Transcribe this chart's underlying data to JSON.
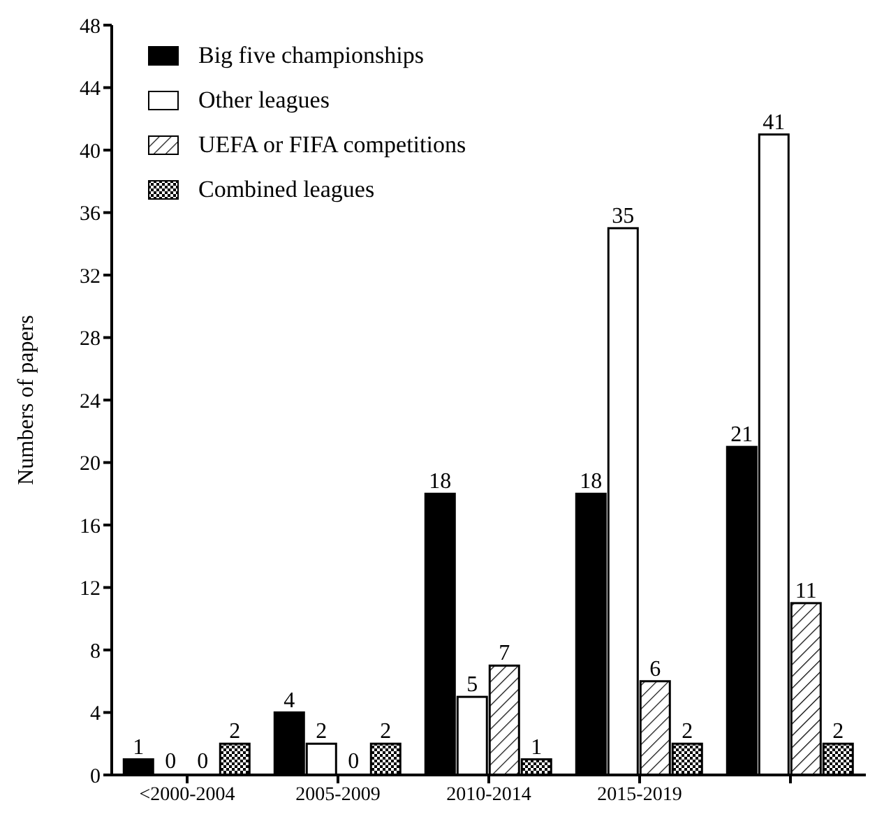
{
  "chart_data": {
    "type": "bar",
    "ylabel": "Numbers of papers",
    "categories": [
      "<2000-2004",
      "2005-2009",
      "2010-2014",
      "2015-2019",
      null
    ],
    "series": [
      {
        "name": "Big five championships",
        "color": "#000000",
        "values": [
          1,
          4,
          18,
          18,
          21
        ]
      },
      {
        "name": "Other leagues",
        "color": "#ffffff",
        "values": [
          0,
          2,
          5,
          35,
          41
        ]
      },
      {
        "name": "UEFA or FIFA competitions",
        "color": "#000000",
        "values": [
          0,
          0,
          7,
          6,
          11
        ]
      },
      {
        "name": "Combined leagues",
        "color": "#000000",
        "values": [
          2,
          2,
          1,
          2,
          2
        ]
      }
    ],
    "ylim": [
      0,
      48
    ],
    "yticks": [
      0,
      4,
      8,
      12,
      16,
      20,
      24,
      28,
      32,
      36,
      40,
      44,
      48
    ],
    "grid": false,
    "legend": "top left",
    "data_labels": true
  }
}
